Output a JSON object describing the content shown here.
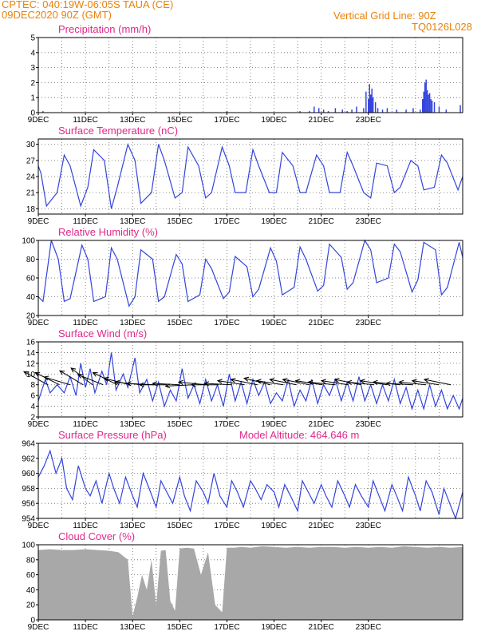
{
  "header": {
    "line1": "CPTEC:   040:19W-06:05S   TAUA (CE)",
    "line2": "09DEC2020 90Z (GMT)",
    "grid_note": "Vertical Grid Line: 90Z",
    "code": "TQ0126L028"
  },
  "colors": {
    "header": "#e8820c",
    "title": "#e0288a",
    "line": "#3344dd",
    "cloud": "#a8a8a8",
    "arrow": "#000000"
  },
  "x_ticks": [
    "9DEC",
    "11DEC",
    "13DEC",
    "15DEC",
    "17DEC",
    "19DEC",
    "21DEC",
    "23DEC"
  ],
  "chart_data": [
    {
      "type": "bar",
      "title": "Precipitation (mm/h)",
      "ylim": [
        0,
        5
      ],
      "yticks": [
        "0",
        "1",
        "2",
        "3",
        "4",
        "5"
      ],
      "x": [
        0.2,
        8.0,
        11.1,
        11.5,
        11.7,
        11.9,
        12.1,
        12.3,
        12.6,
        12.9,
        13.1,
        13.3,
        13.5,
        13.8,
        13.9,
        14.0,
        14.05,
        14.1,
        14.15,
        14.2,
        14.3,
        14.4,
        14.6,
        14.8,
        15.2,
        15.6,
        15.9,
        16.2,
        16.3,
        16.35,
        16.4,
        16.45,
        16.5,
        16.55,
        16.6,
        16.65,
        16.7,
        16.8,
        17.0,
        17.3,
        17.9
      ],
      "values": [
        0.1,
        0.1,
        0.1,
        0.1,
        0.4,
        0.3,
        0.2,
        0.1,
        0.3,
        0.2,
        0.1,
        0.2,
        0.4,
        0.3,
        1.4,
        0.9,
        1.9,
        1.2,
        1.6,
        1.0,
        0.7,
        0.3,
        0.2,
        0.3,
        0.2,
        0.2,
        0.3,
        0.2,
        0.9,
        1.4,
        2.0,
        2.2,
        1.5,
        1.2,
        1.3,
        0.9,
        0.8,
        0.7,
        0.4,
        0.2,
        0.5
      ]
    },
    {
      "type": "line",
      "title": "Surface Temperature (nC)",
      "ylim": [
        17,
        31
      ],
      "yticks": [
        "18",
        "21",
        "24",
        "27",
        "30"
      ],
      "x": [
        0,
        0.12,
        0.35,
        0.8,
        1.1,
        1.35,
        1.8,
        2.1,
        2.35,
        2.8,
        3.1,
        3.35,
        3.8,
        4.1,
        4.35,
        4.8,
        5.1,
        5.35,
        5.8,
        6.1,
        6.35,
        6.8,
        7.1,
        7.35,
        7.8,
        8.1,
        8.35,
        8.8,
        9.1,
        9.35,
        9.8,
        10.1,
        10.35,
        10.8,
        11.1,
        11.35,
        11.8,
        12.1,
        12.35,
        12.8,
        13.1,
        13.35,
        13.8,
        14.1,
        14.35,
        14.8,
        15.1,
        15.35,
        15.8,
        16.1,
        16.35,
        16.8,
        17.1,
        17.35,
        17.8,
        18.0
      ],
      "values": [
        26,
        24.5,
        18.5,
        21,
        28,
        26,
        18.5,
        22,
        29,
        27,
        18,
        22,
        30,
        27,
        19,
        21,
        30,
        27,
        20,
        21,
        29.5,
        26,
        20,
        21,
        29.5,
        26,
        21,
        21,
        29,
        26,
        21,
        21,
        28.5,
        26,
        21,
        21,
        28,
        26,
        21,
        21,
        28.5,
        26,
        21,
        20,
        26.5,
        26,
        21,
        22,
        27,
        26,
        21.5,
        22,
        28,
        26.5,
        21.5,
        24
      ]
    },
    {
      "type": "line",
      "title": "Relative Humidity (%)",
      "ylim": [
        20,
        100
      ],
      "yticks": [
        "20",
        "40",
        "60",
        "80",
        "100"
      ],
      "x": [
        0,
        0.2,
        0.55,
        0.85,
        1.1,
        1.35,
        1.85,
        2.1,
        2.35,
        2.85,
        3.1,
        3.35,
        3.85,
        4.1,
        4.35,
        4.85,
        5.1,
        5.35,
        5.85,
        6.1,
        6.35,
        6.85,
        7.1,
        7.35,
        7.85,
        8.1,
        8.35,
        8.85,
        9.1,
        9.35,
        9.85,
        10.1,
        10.35,
        10.85,
        11.1,
        11.35,
        11.85,
        12.1,
        12.35,
        12.85,
        13.1,
        13.35,
        13.85,
        14.1,
        14.35,
        14.85,
        15.1,
        15.35,
        15.85,
        16.1,
        16.35,
        16.85,
        17.1,
        17.35,
        17.85,
        18.0
      ],
      "values": [
        40,
        35,
        100,
        80,
        35,
        38,
        95,
        80,
        35,
        40,
        92,
        80,
        30,
        40,
        90,
        80,
        35,
        40,
        85,
        75,
        35,
        42,
        80,
        70,
        38,
        45,
        83,
        72,
        40,
        48,
        92,
        78,
        42,
        50,
        93,
        80,
        46,
        52,
        96,
        82,
        48,
        55,
        100,
        90,
        55,
        60,
        96,
        88,
        45,
        58,
        98,
        90,
        42,
        50,
        98,
        82
      ]
    },
    {
      "type": "line",
      "title": "Surface Wind (m/s)",
      "ylim": [
        2,
        16
      ],
      "yticks": [
        "2",
        "4",
        "6",
        "8",
        "10",
        "12",
        "14",
        "16"
      ],
      "x": [
        0,
        0.3,
        0.5,
        0.8,
        1.1,
        1.35,
        1.6,
        1.8,
        2.0,
        2.2,
        2.4,
        2.7,
        2.9,
        3.1,
        3.3,
        3.6,
        3.8,
        4.1,
        4.3,
        4.6,
        4.85,
        5.1,
        5.35,
        5.6,
        5.85,
        6.1,
        6.35,
        6.6,
        6.85,
        7.1,
        7.35,
        7.6,
        7.85,
        8.1,
        8.35,
        8.6,
        8.85,
        9.1,
        9.35,
        9.6,
        9.85,
        10.1,
        10.35,
        10.6,
        10.85,
        11.1,
        11.35,
        11.6,
        11.85,
        12.1,
        12.35,
        12.6,
        12.85,
        13.1,
        13.35,
        13.6,
        13.85,
        14.1,
        14.35,
        14.6,
        14.85,
        15.1,
        15.35,
        15.6,
        15.85,
        16.1,
        16.35,
        16.6,
        16.85,
        17.1,
        17.35,
        17.6,
        17.85,
        18.0
      ],
      "values": [
        5,
        9,
        6.5,
        8,
        6.5,
        9.5,
        6,
        12,
        7.5,
        11,
        6.5,
        10.5,
        8,
        14,
        7,
        10,
        7.5,
        13,
        6.5,
        9,
        5,
        8.5,
        4,
        7,
        5,
        11,
        5.5,
        8,
        4.5,
        9,
        5,
        8,
        4,
        10,
        5,
        8.5,
        4.5,
        9,
        6,
        8.5,
        4.5,
        6.5,
        5,
        9,
        4,
        7,
        5,
        9,
        4.5,
        8,
        6,
        9,
        5,
        8.5,
        5,
        9.5,
        5,
        8,
        4.5,
        8,
        5,
        9,
        4.5,
        7.5,
        3.5,
        7,
        3.5,
        8,
        4,
        7,
        3.5,
        6,
        3.5,
        5.5
      ],
      "arrows": {
        "x": [
          0.4,
          0.9,
          1.35,
          1.9,
          2.3,
          2.75,
          3.35,
          3.9,
          4.4,
          4.9,
          5.45,
          6.0,
          6.55,
          7.1,
          7.65,
          8.2,
          8.75,
          9.3,
          9.85,
          10.4,
          10.95,
          11.5,
          12.05,
          12.6,
          13.15,
          13.7,
          14.25,
          14.8,
          15.35,
          15.9,
          16.45,
          17.0,
          17.5
        ],
        "u": [
          -1,
          -1,
          -1,
          -1,
          -0.9,
          -1,
          -1,
          -1,
          -1,
          -1,
          -1,
          -1,
          -1,
          -1,
          -1,
          -1,
          -1,
          -1,
          -1,
          -1,
          -1,
          -1,
          -1,
          -1,
          -1,
          -1,
          -1,
          -1,
          -1,
          -1,
          -1,
          -1,
          -1
        ],
        "v": [
          0.55,
          0.5,
          0.3,
          0.6,
          0.7,
          0.4,
          0.5,
          0.25,
          0.1,
          0.05,
          0,
          0.05,
          -0.05,
          0.1,
          0,
          0.05,
          0.15,
          0.2,
          0.25,
          0.15,
          0.2,
          0.2,
          0.15,
          0.1,
          0.15,
          0.2,
          0.1,
          0.15,
          0.1,
          0.05,
          0.1,
          0.15,
          0.2
        ]
      }
    },
    {
      "type": "line",
      "title": "Surface Pressure (hPa)",
      "ylim": [
        954,
        964
      ],
      "yticks": [
        "954",
        "956",
        "958",
        "960",
        "962",
        "964"
      ],
      "x": [
        0,
        0.25,
        0.5,
        0.75,
        1.0,
        1.2,
        1.45,
        1.7,
        2.0,
        2.2,
        2.45,
        2.7,
        3.0,
        3.2,
        3.45,
        3.7,
        4.0,
        4.2,
        4.45,
        4.7,
        5.0,
        5.2,
        5.45,
        5.7,
        6.0,
        6.2,
        6.45,
        6.7,
        7.0,
        7.2,
        7.45,
        7.7,
        8.0,
        8.2,
        8.45,
        8.7,
        9.0,
        9.2,
        9.45,
        9.7,
        10.0,
        10.2,
        10.45,
        10.7,
        11.0,
        11.2,
        11.45,
        11.7,
        12.0,
        12.2,
        12.45,
        12.7,
        13.0,
        13.2,
        13.45,
        13.7,
        14.0,
        14.2,
        14.45,
        14.7,
        15.0,
        15.2,
        15.45,
        15.7,
        16.0,
        16.2,
        16.45,
        16.7,
        17.0,
        17.2,
        17.45,
        17.7,
        18.0
      ],
      "values": [
        959.5,
        961,
        963,
        960,
        962,
        958,
        956.5,
        961,
        958,
        957,
        959,
        956,
        960,
        958,
        956,
        959.5,
        957,
        955.5,
        960,
        958,
        955.5,
        959,
        957.5,
        956,
        959.5,
        957,
        955,
        959,
        957.5,
        956,
        960,
        957,
        955.5,
        959,
        957.5,
        955.5,
        959,
        958,
        956.5,
        958.5,
        957.5,
        955.5,
        958.5,
        957,
        955,
        959,
        957.5,
        956,
        958.5,
        957,
        955.5,
        959,
        957,
        955.5,
        958.5,
        957,
        955.5,
        959,
        957,
        955,
        958.5,
        957,
        955,
        959.5,
        957,
        955,
        959,
        957.5,
        954.5,
        958,
        956,
        954,
        957.5
      ]
    },
    {
      "type": "area",
      "title": "Cloud Cover (%)",
      "ylim": [
        0,
        100
      ],
      "yticks": [
        "0",
        "20",
        "40",
        "60",
        "80",
        "100"
      ],
      "x": [
        0,
        0.5,
        1.0,
        1.5,
        2.0,
        2.5,
        3.0,
        3.4,
        3.6,
        3.8,
        4.0,
        4.2,
        4.4,
        4.6,
        4.8,
        5.0,
        5.2,
        5.4,
        5.6,
        5.8,
        6.0,
        6.3,
        6.6,
        6.9,
        7.2,
        7.5,
        7.8,
        8.0,
        8.3,
        8.6,
        9.0,
        9.5,
        10.0,
        10.5,
        11.0,
        11.5,
        12.0,
        12.5,
        13.0,
        13.5,
        14.0,
        14.5,
        15.0,
        15.5,
        16.0,
        16.5,
        17.0,
        17.5,
        18.0
      ],
      "values": [
        93,
        94,
        93,
        93,
        94,
        93,
        92,
        90,
        85,
        80,
        5,
        30,
        60,
        40,
        80,
        20,
        92,
        93,
        25,
        12,
        95,
        96,
        95,
        60,
        90,
        20,
        10,
        96,
        96,
        97,
        96,
        98,
        97,
        96,
        97,
        96,
        97,
        97,
        96,
        97,
        96,
        97,
        96,
        98,
        97,
        96,
        97,
        96,
        97
      ]
    }
  ],
  "altitude": {
    "label": "Model Altitude:",
    "value": "464.646",
    "unit": "m"
  }
}
